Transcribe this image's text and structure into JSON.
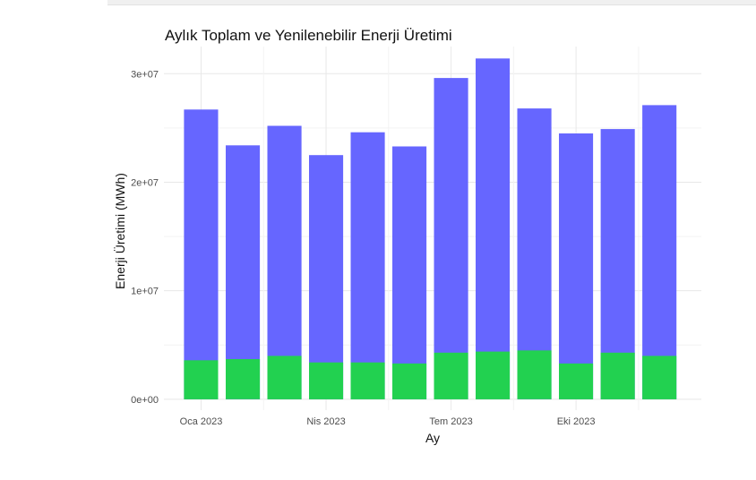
{
  "chart_data": {
    "type": "bar",
    "title": "Aylık Toplam ve Yenilenebilir Enerji Üretimi",
    "xlabel": "Ay",
    "ylabel": "Enerji Üretimi (MWh)",
    "x_tick_labels": [
      "Oca 2023",
      "Nis 2023",
      "Tem 2023",
      "Eki 2023"
    ],
    "y_tick_labels": [
      "0e+00",
      "1e+07",
      "2e+07",
      "3e+07"
    ],
    "y_ticks": [
      0,
      10000000,
      20000000,
      30000000
    ],
    "ylim": [
      -1000000,
      32500000
    ],
    "categories": [
      "2023-01",
      "2023-02",
      "2023-03",
      "2023-04",
      "2023-05",
      "2023-06",
      "2023-07",
      "2023-08",
      "2023-09",
      "2023-10",
      "2023-11",
      "2023-12"
    ],
    "series": [
      {
        "color": "#6666ff",
        "values": [
          26700000,
          23400000,
          25200000,
          22500000,
          24600000,
          23300000,
          29600000,
          31400000,
          26800000,
          24500000,
          24900000,
          27100000
        ]
      },
      {
        "color": "#22d150",
        "values": [
          3600000,
          3700000,
          4000000,
          3400000,
          3400000,
          3300000,
          4300000,
          4400000,
          4500000,
          3300000,
          4300000,
          4000000
        ]
      }
    ],
    "grid": true,
    "legend": false
  }
}
